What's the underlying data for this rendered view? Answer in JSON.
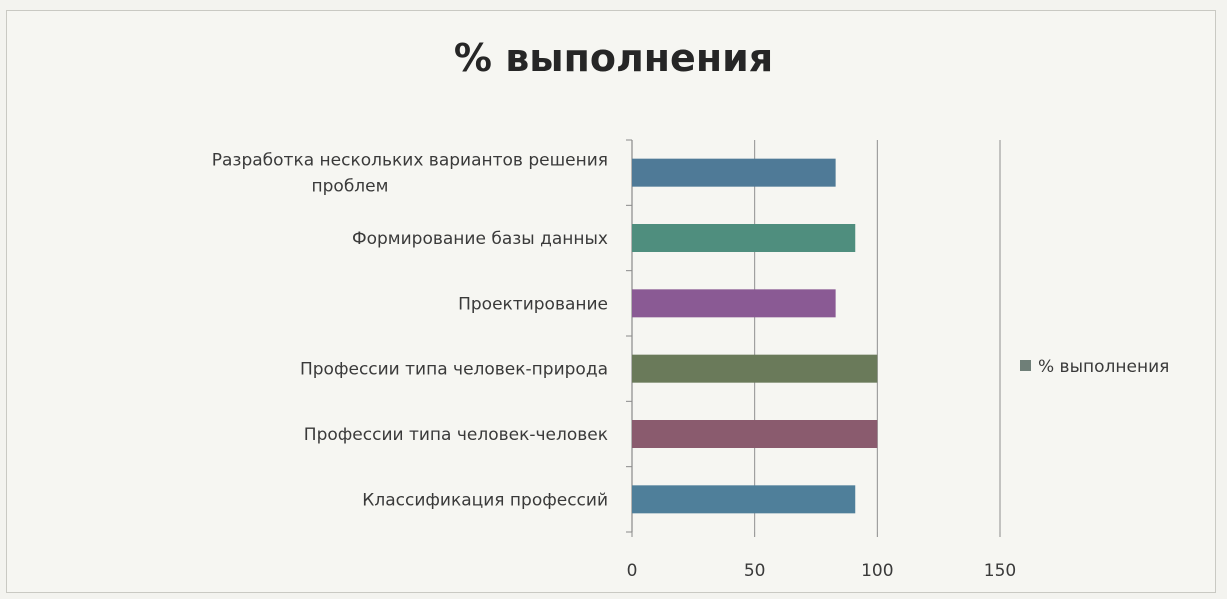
{
  "chart_data": {
    "type": "bar",
    "orientation": "horizontal",
    "title": "% выполнения",
    "categories": [
      "Разработка нескольких вариантов решения проблем",
      "Формирование базы данных",
      "Проектирование",
      "Профессии типа человек-природа",
      "Профессии типа человек-человек",
      "Классификация профессий"
    ],
    "category_label_lines": [
      [
        "Разработка нескольких вариантов решения",
        "проблем"
      ],
      [
        "Формирование базы данных"
      ],
      [
        "Проектирование"
      ],
      [
        "Профессии типа человек-природа"
      ],
      [
        "Профессии типа человек-человек"
      ],
      [
        "Классификация профессий"
      ]
    ],
    "series": [
      {
        "name": "% выполнения",
        "values": [
          83,
          91,
          83,
          100,
          100,
          91
        ]
      }
    ],
    "xlim": [
      0,
      150
    ],
    "xticks": [
      0,
      50,
      100,
      150
    ],
    "grid": "vertical",
    "legend_position": "right",
    "bar_colors": [
      "#4f7a97",
      "#4f8e7e",
      "#8a5a94",
      "#6a7a5a",
      "#8a5b6e",
      "#4f7f9a"
    ],
    "legend_color": "#6f7f78"
  }
}
